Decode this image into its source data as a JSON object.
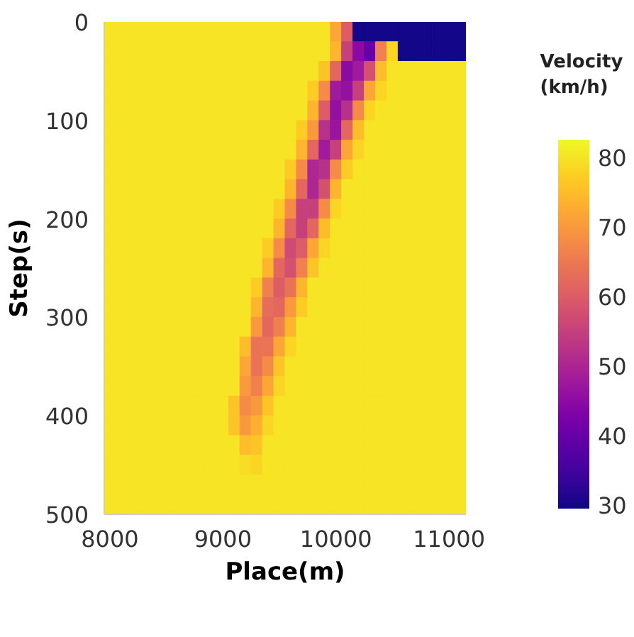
{
  "chart_data": {
    "type": "heatmap",
    "xlabel": "Place(m)",
    "ylabel": "Step(s)",
    "clabel": "Velocity\n(km/h)",
    "xlim": [
      7950,
      11150
    ],
    "xticks": [
      8000,
      9000,
      10000,
      11000
    ],
    "ylim": [
      500,
      0
    ],
    "yticks": [
      0,
      100,
      200,
      300,
      400,
      500
    ],
    "clim": [
      29.5,
      82.5
    ],
    "cticks": [
      30,
      40,
      50,
      60,
      70,
      80
    ],
    "cells": [
      [
        80,
        80,
        80,
        80,
        80,
        80,
        80,
        80,
        80,
        80,
        80,
        80,
        80,
        80,
        80,
        80,
        80,
        80,
        80,
        80,
        72,
        60,
        30,
        30,
        30,
        30,
        30,
        30,
        30,
        30,
        30,
        30
      ],
      [
        80,
        80,
        80,
        80,
        80,
        80,
        80,
        80,
        80,
        80,
        80,
        80,
        80,
        80,
        80,
        80,
        80,
        80,
        80,
        80,
        74,
        55,
        45,
        40,
        66,
        78,
        30,
        30,
        30,
        30,
        30,
        30
      ],
      [
        80,
        80,
        80,
        80,
        80,
        80,
        80,
        80,
        80,
        80,
        80,
        80,
        80,
        80,
        80,
        80,
        80,
        80,
        80,
        76,
        62,
        45,
        48,
        58,
        75,
        80,
        80,
        80,
        80,
        80,
        80,
        80
      ],
      [
        80,
        80,
        80,
        80,
        80,
        80,
        80,
        80,
        80,
        80,
        80,
        80,
        80,
        80,
        80,
        80,
        80,
        80,
        77,
        68,
        48,
        46,
        55,
        72,
        78,
        80,
        80,
        80,
        80,
        80,
        80,
        80
      ],
      [
        80,
        80,
        80,
        80,
        80,
        80,
        80,
        80,
        80,
        80,
        80,
        80,
        80,
        80,
        80,
        80,
        80,
        80,
        74,
        60,
        46,
        52,
        68,
        78,
        80,
        80,
        80,
        80,
        80,
        80,
        80,
        80
      ],
      [
        80,
        80,
        80,
        80,
        80,
        80,
        80,
        80,
        80,
        80,
        80,
        80,
        80,
        80,
        80,
        80,
        80,
        77,
        70,
        52,
        47,
        62,
        75,
        80,
        80,
        80,
        80,
        80,
        80,
        80,
        80,
        80
      ],
      [
        80,
        80,
        80,
        80,
        80,
        80,
        80,
        80,
        80,
        80,
        80,
        80,
        80,
        80,
        80,
        80,
        80,
        74,
        62,
        48,
        55,
        72,
        78,
        80,
        80,
        80,
        80,
        80,
        80,
        80,
        80,
        80
      ],
      [
        80,
        80,
        80,
        80,
        80,
        80,
        80,
        80,
        80,
        80,
        80,
        80,
        80,
        80,
        80,
        80,
        77,
        68,
        50,
        52,
        68,
        77,
        80,
        80,
        80,
        80,
        80,
        80,
        80,
        80,
        80,
        80
      ],
      [
        80,
        80,
        80,
        80,
        80,
        80,
        80,
        80,
        80,
        80,
        80,
        80,
        80,
        80,
        80,
        80,
        74,
        62,
        50,
        58,
        74,
        80,
        80,
        80,
        80,
        80,
        80,
        80,
        80,
        80,
        80,
        80
      ],
      [
        80,
        80,
        80,
        80,
        80,
        80,
        80,
        80,
        80,
        80,
        80,
        80,
        80,
        80,
        80,
        77,
        68,
        55,
        55,
        68,
        78,
        80,
        80,
        80,
        80,
        80,
        80,
        80,
        80,
        80,
        80,
        80
      ],
      [
        80,
        80,
        80,
        80,
        80,
        80,
        80,
        80,
        80,
        80,
        80,
        80,
        80,
        80,
        80,
        74,
        62,
        55,
        62,
        75,
        80,
        80,
        80,
        80,
        80,
        80,
        80,
        80,
        80,
        80,
        80,
        80
      ],
      [
        80,
        80,
        80,
        80,
        80,
        80,
        80,
        80,
        80,
        80,
        80,
        80,
        80,
        80,
        77,
        68,
        57,
        60,
        72,
        78,
        80,
        80,
        80,
        80,
        80,
        80,
        80,
        80,
        80,
        80,
        80,
        80
      ],
      [
        80,
        80,
        80,
        80,
        80,
        80,
        80,
        80,
        80,
        80,
        80,
        80,
        80,
        80,
        74,
        62,
        58,
        66,
        76,
        80,
        80,
        80,
        80,
        80,
        80,
        80,
        80,
        80,
        80,
        80,
        80,
        80
      ],
      [
        80,
        80,
        80,
        80,
        80,
        80,
        80,
        80,
        80,
        80,
        80,
        80,
        80,
        77,
        66,
        60,
        64,
        74,
        80,
        80,
        80,
        80,
        80,
        80,
        80,
        80,
        80,
        80,
        80,
        80,
        80,
        80
      ],
      [
        80,
        80,
        80,
        80,
        80,
        80,
        80,
        80,
        80,
        80,
        80,
        80,
        80,
        74,
        63,
        62,
        70,
        77,
        80,
        80,
        80,
        80,
        80,
        80,
        80,
        80,
        80,
        80,
        80,
        80,
        80,
        80
      ],
      [
        80,
        80,
        80,
        80,
        80,
        80,
        80,
        80,
        80,
        80,
        80,
        80,
        80,
        70,
        62,
        66,
        74,
        80,
        80,
        80,
        80,
        80,
        80,
        80,
        80,
        80,
        80,
        80,
        80,
        80,
        80,
        80
      ],
      [
        80,
        80,
        80,
        80,
        80,
        80,
        80,
        80,
        80,
        80,
        80,
        80,
        75,
        64,
        64,
        72,
        78,
        80,
        80,
        80,
        80,
        80,
        80,
        80,
        80,
        80,
        80,
        80,
        80,
        80,
        80,
        80
      ],
      [
        80,
        80,
        80,
        80,
        80,
        80,
        80,
        80,
        80,
        80,
        80,
        80,
        72,
        64,
        68,
        76,
        80,
        80,
        80,
        80,
        80,
        80,
        80,
        80,
        80,
        80,
        80,
        80,
        80,
        80,
        80,
        80
      ],
      [
        80,
        80,
        80,
        80,
        80,
        80,
        80,
        80,
        80,
        80,
        80,
        80,
        70,
        66,
        72,
        78,
        80,
        80,
        80,
        80,
        80,
        80,
        80,
        80,
        80,
        80,
        80,
        80,
        80,
        80,
        80,
        80
      ],
      [
        80,
        80,
        80,
        80,
        80,
        80,
        80,
        80,
        80,
        80,
        80,
        76,
        68,
        70,
        76,
        80,
        80,
        80,
        80,
        80,
        80,
        80,
        80,
        80,
        80,
        80,
        80,
        80,
        80,
        80,
        80,
        80
      ],
      [
        80,
        80,
        80,
        80,
        80,
        80,
        80,
        80,
        80,
        80,
        80,
        76,
        70,
        73,
        78,
        80,
        80,
        80,
        80,
        80,
        80,
        80,
        80,
        80,
        80,
        80,
        80,
        80,
        80,
        80,
        80,
        80
      ],
      [
        80,
        80,
        80,
        80,
        80,
        80,
        80,
        80,
        80,
        80,
        80,
        80,
        75,
        76,
        80,
        80,
        80,
        80,
        80,
        80,
        80,
        80,
        80,
        80,
        80,
        80,
        80,
        80,
        80,
        80,
        80,
        80
      ],
      [
        80,
        80,
        80,
        80,
        80,
        80,
        80,
        80,
        80,
        80,
        80,
        80,
        79,
        78,
        80,
        80,
        80,
        80,
        80,
        80,
        80,
        80,
        80,
        80,
        80,
        80,
        80,
        80,
        80,
        80,
        80,
        80
      ],
      [
        80,
        80,
        80,
        80,
        80,
        80,
        80,
        80,
        80,
        80,
        80,
        80,
        80,
        80,
        80,
        80,
        80,
        80,
        80,
        80,
        80,
        80,
        80,
        80,
        80,
        80,
        80,
        80,
        80,
        80,
        80,
        80
      ],
      [
        80,
        80,
        80,
        80,
        80,
        80,
        80,
        80,
        80,
        80,
        80,
        80,
        80,
        80,
        80,
        80,
        80,
        80,
        80,
        80,
        80,
        80,
        80,
        80,
        80,
        80,
        80,
        80,
        80,
        80,
        80,
        80
      ]
    ]
  }
}
